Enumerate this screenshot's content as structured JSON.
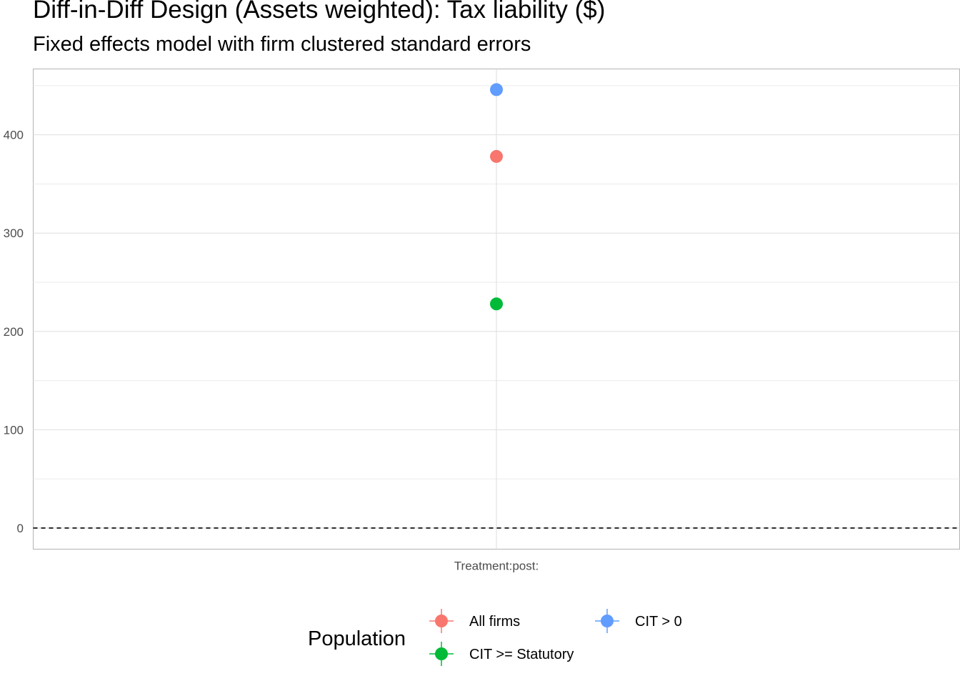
{
  "chart_data": {
    "type": "scatter",
    "title": "Diff-in-Diff Design (Assets weighted): Tax liability  ($)",
    "subtitle": "Fixed effects model with firm clustered standard errors",
    "xlabel": "",
    "ylabel": "",
    "categories": [
      "Treatment:post:"
    ],
    "ylim": [
      -21.5,
      467
    ],
    "y_ticks": [
      0,
      100,
      200,
      300,
      400
    ],
    "grid": true,
    "reference_line": {
      "y": 0,
      "style": "dashed",
      "color": "#000000"
    },
    "series": [
      {
        "name": "All firms",
        "color": "#F8766D",
        "values": [
          378
        ]
      },
      {
        "name": "CIT >= Statutory",
        "color": "#00BA38",
        "values": [
          228
        ]
      },
      {
        "name": "CIT > 0",
        "color": "#619CFF",
        "values": [
          446
        ]
      }
    ],
    "legend": {
      "title": "Population",
      "placement": "bottom",
      "order": [
        "All firms",
        "CIT > 0",
        "CIT >= Statutory"
      ]
    }
  }
}
